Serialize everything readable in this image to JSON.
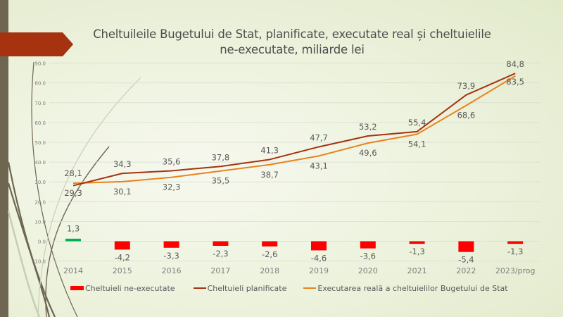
{
  "slide": {
    "title_line1": "Cheltuileile  Bugetului de Stat, planificate, executate real și cheltuielile",
    "title_line2": "ne-executate,  miliarde lei",
    "colors": {
      "stripe": "#6e6650",
      "banner": "#a6320f",
      "planned": "#a6320f",
      "executed": "#e8831f",
      "unexecuted_negative": "#ff0000",
      "unexecuted_positive": "#00b050",
      "grid": "#d9ddd0",
      "text": "#595959"
    }
  },
  "chart_data": {
    "type": "bar+line",
    "title": "Cheltuileile Bugetului de Stat, planificate, executate real și cheltuielile ne-executate, miliarde lei",
    "xlabel": "",
    "ylabel": "",
    "ylim": [
      -10,
      90
    ],
    "yticks": [
      "90.0",
      "80.0",
      "70.0",
      "60.0",
      "50.0",
      "40.0",
      "30.0",
      "20.0",
      "10.0",
      "0.0",
      "-10.0"
    ],
    "ytick_values": [
      90,
      80,
      70,
      60,
      50,
      40,
      30,
      20,
      10,
      0,
      -10
    ],
    "grid": true,
    "legend_position": "bottom",
    "categories": [
      "2014",
      "2015",
      "2016",
      "2017",
      "2018",
      "2019",
      "2020",
      "2021",
      "2022",
      "2023/prog"
    ],
    "series": [
      {
        "name": "Cheltuieli ne-executate",
        "type": "bar",
        "values": [
          1.3,
          -4.2,
          -3.3,
          -2.3,
          -2.6,
          -4.6,
          -3.6,
          -1.3,
          -5.4,
          -1.3
        ],
        "labels": [
          "1,3",
          "-4,2",
          "-3,3",
          "-2,3",
          "-2,6",
          "-4,6",
          "-3,6",
          "-1,3",
          "-5,4",
          "-1,3"
        ]
      },
      {
        "name": "Cheltuieli planificate",
        "type": "line",
        "values": [
          28.1,
          34.3,
          35.6,
          37.8,
          41.3,
          47.7,
          53.2,
          55.4,
          73.9,
          84.8
        ],
        "labels": [
          "28,1",
          "34,3",
          "35,6",
          "37,8",
          "41,3",
          "47,7",
          "53,2",
          "55,4",
          "73,9",
          "84,8"
        ]
      },
      {
        "name": "Executarea reală a cheltuielilor Bugetului de Stat",
        "type": "line",
        "values": [
          29.3,
          30.1,
          32.3,
          35.5,
          38.7,
          43.1,
          49.6,
          54.1,
          68.6,
          83.5
        ],
        "labels": [
          "29,3",
          "30,1",
          "32,3",
          "35,5",
          "38,7",
          "43,1",
          "49,6",
          "54,1",
          "68,6",
          "83,5"
        ]
      }
    ]
  },
  "legend": {
    "items": [
      {
        "label": "Cheltuieli ne-executate"
      },
      {
        "label": "Cheltuieli planificate"
      },
      {
        "label": "Executarea reală a cheltuielilor Bugetului de Stat"
      }
    ]
  }
}
